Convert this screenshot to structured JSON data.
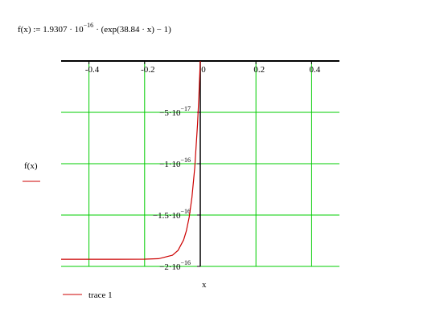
{
  "formula": {
    "lhs": "f(x) := 1.9307 · 10",
    "exponent": "−16",
    "rhs": "· (exp(38.84 · x) − 1)"
  },
  "chart_data": {
    "type": "line",
    "x_label": "x",
    "y_label": "f(x)",
    "x": [
      -0.5,
      -0.4,
      -0.3,
      -0.2,
      -0.15,
      -0.1,
      -0.08,
      -0.06,
      -0.05,
      -0.04,
      -0.03,
      -0.02,
      -0.01,
      -0.005,
      0
    ],
    "series": [
      {
        "name": "trace 1",
        "color": "#cc0000",
        "values": [
          -1.9307e-16,
          -1.9307e-16,
          -1.9307e-16,
          -1.9299e-16,
          -1.925e-16,
          -1.891e-16,
          -1.8443e-16,
          -1.7429e-16,
          -1.6538e-16,
          -1.5223e-16,
          -1.3285e-16,
          -1.0428e-16,
          -6.213e-17,
          -3.408e-17,
          0
        ]
      }
    ],
    "xlim": [
      -0.5,
      0.5
    ],
    "xticks": [
      -0.4,
      -0.2,
      0,
      0.2,
      0.4
    ],
    "ylim": [
      -2e-16,
      0
    ],
    "yticks": [
      {
        "value": -5e-17,
        "label": "−5·10",
        "exponent": "−17"
      },
      {
        "value": -1e-16,
        "label": "−1·10",
        "exponent": "−16"
      },
      {
        "value": -1.5e-16,
        "label": "−1.5·10",
        "exponent": "−16"
      },
      {
        "value": -2e-16,
        "label": "−2·10",
        "exponent": "−16"
      }
    ],
    "grid": true,
    "grid_color": "#00cc00"
  }
}
